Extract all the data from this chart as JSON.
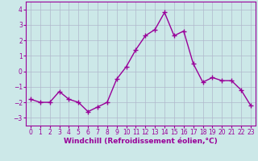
{
  "x": [
    0,
    1,
    2,
    3,
    4,
    5,
    6,
    7,
    8,
    9,
    10,
    11,
    12,
    13,
    14,
    15,
    16,
    17,
    18,
    19,
    20,
    21,
    22,
    23
  ],
  "y": [
    -1.8,
    -2.0,
    -2.0,
    -1.3,
    -1.8,
    -2.0,
    -2.6,
    -2.3,
    -2.0,
    -0.5,
    0.3,
    1.4,
    2.3,
    2.7,
    3.8,
    2.3,
    2.6,
    0.5,
    -0.7,
    -0.4,
    -0.6,
    -0.6,
    -1.2,
    -2.2
  ],
  "line_color": "#990099",
  "marker": "+",
  "markersize": 4,
  "linewidth": 1.0,
  "markeredgewidth": 1.0,
  "xlabel": "Windchill (Refroidissement éolien,°C)",
  "xlabel_fontsize": 6.5,
  "ylim": [
    -3.5,
    4.5
  ],
  "xlim": [
    -0.5,
    23.5
  ],
  "yticks": [
    -3,
    -2,
    -1,
    0,
    1,
    2,
    3,
    4
  ],
  "xticks": [
    0,
    1,
    2,
    3,
    4,
    5,
    6,
    7,
    8,
    9,
    10,
    11,
    12,
    13,
    14,
    15,
    16,
    17,
    18,
    19,
    20,
    21,
    22,
    23
  ],
  "tick_fontsize": 5.5,
  "background_color": "#cce8e8",
  "grid_color": "#b0b8cc",
  "grid_linewidth": 0.5,
  "fig_bg": "#cce8e8"
}
